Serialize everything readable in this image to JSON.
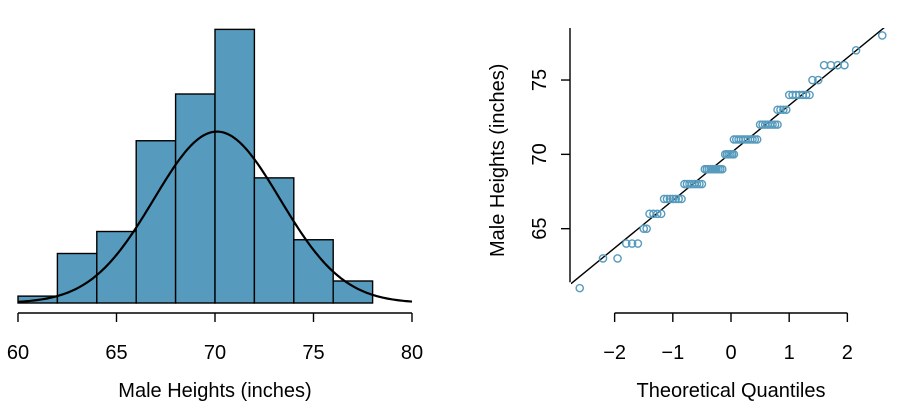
{
  "chart_data": [
    {
      "type": "bar",
      "subtype": "histogram",
      "xlabel": "Male Heights (inches)",
      "ylabel": "",
      "title": "",
      "xlim": [
        60,
        80
      ],
      "xticks": [
        "60",
        "65",
        "70",
        "75",
        "80"
      ],
      "bin_edges": [
        60,
        62,
        64,
        66,
        68,
        70,
        72,
        74,
        76,
        78
      ],
      "values": [
        0.005,
        0.036,
        0.052,
        0.118,
        0.152,
        0.199,
        0.091,
        0.046,
        0.016
      ],
      "ylim": [
        0,
        0.2
      ],
      "overlay": {
        "type": "normal_curve",
        "mean": 70.1,
        "sd": 3.2
      },
      "bar_color": "#569BBD"
    },
    {
      "type": "scatter",
      "subtype": "normal_qq_plot",
      "xlabel": "Theoretical Quantiles",
      "ylabel": "Male Heights (inches)",
      "title": "",
      "xlim": [
        -2.75,
        2.75
      ],
      "ylim": [
        60,
        78.5
      ],
      "xticks": [
        "−2",
        "−1",
        "0",
        "1",
        "2"
      ],
      "yticks": [
        "65",
        "70",
        "75"
      ],
      "reference_line": {
        "intercept": 70.1,
        "slope": 3.2
      },
      "point_color": "#569BBD",
      "groups": [
        {
          "y": 61,
          "x_from": -2.6,
          "x_to": -2.6,
          "n": 1
        },
        {
          "y": 63,
          "x_from": -2.2,
          "x_to": -1.95,
          "n": 2
        },
        {
          "y": 64,
          "x_from": -1.8,
          "x_to": -1.6,
          "n": 3
        },
        {
          "y": 65,
          "x_from": -1.5,
          "x_to": -1.45,
          "n": 2
        },
        {
          "y": 66,
          "x_from": -1.4,
          "x_to": -1.2,
          "n": 4
        },
        {
          "y": 67,
          "x_from": -1.15,
          "x_to": -0.85,
          "n": 7
        },
        {
          "y": 68,
          "x_from": -0.8,
          "x_to": -0.5,
          "n": 8
        },
        {
          "y": 69,
          "x_from": -0.45,
          "x_to": -0.15,
          "n": 10
        },
        {
          "y": 70,
          "x_from": -0.1,
          "x_to": 0.05,
          "n": 6
        },
        {
          "y": 71,
          "x_from": 0.05,
          "x_to": 0.45,
          "n": 11
        },
        {
          "y": 72,
          "x_from": 0.5,
          "x_to": 0.8,
          "n": 8
        },
        {
          "y": 73,
          "x_from": 0.8,
          "x_to": 0.95,
          "n": 4
        },
        {
          "y": 74,
          "x_from": 1.0,
          "x_to": 1.35,
          "n": 7
        },
        {
          "y": 75,
          "x_from": 1.4,
          "x_to": 1.5,
          "n": 2
        },
        {
          "y": 76,
          "x_from": 1.6,
          "x_to": 1.95,
          "n": 4
        },
        {
          "y": 77,
          "x_from": 2.15,
          "x_to": 2.15,
          "n": 1
        },
        {
          "y": 78,
          "x_from": 2.6,
          "x_to": 2.6,
          "n": 1
        }
      ]
    }
  ]
}
